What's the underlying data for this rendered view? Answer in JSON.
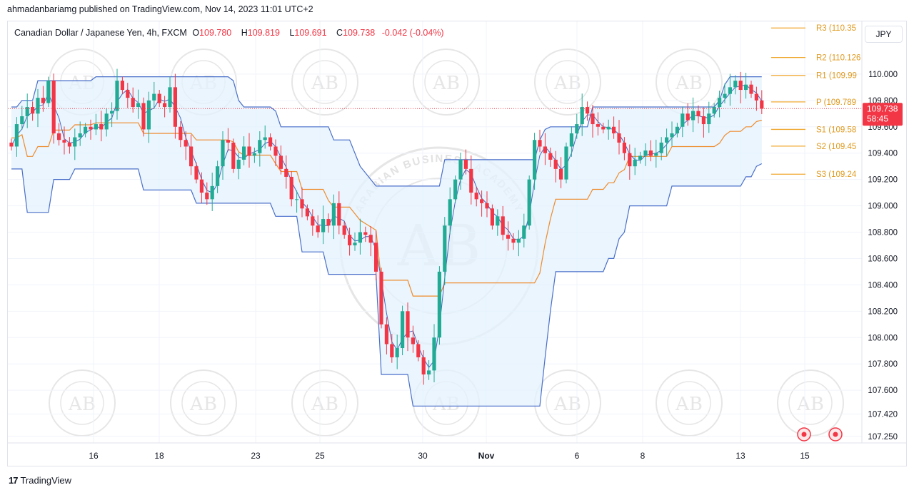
{
  "header": {
    "published": "ahmadanbariamg published on TradingView.com, Nov 14, 2023 11:01 UTC+2"
  },
  "legend": {
    "symbol": "Canadian Dollar / Japanese Yen, 4h, FXCM",
    "open_key": "O",
    "open": "109.780",
    "high_key": "H",
    "high": "109.819",
    "low_key": "L",
    "low": "109.691",
    "close_key": "C",
    "close": "109.738",
    "change": "-0.042 (-0.04%)"
  },
  "currency_button": "JPY",
  "footer": {
    "brand": "TradingView",
    "logo_mark": "17"
  },
  "watermark": {
    "top_text": "ARABIAN BUSINESS ACADEMY",
    "initials": "AB"
  },
  "colors": {
    "up": "#22ab94",
    "down": "#f23645",
    "channel": "#4a6fc9",
    "channel_fill": "#e3f2fd",
    "mid_line": "#ef8b2c",
    "pivot": "#f0a830",
    "price_label": "#f23645"
  },
  "chart_data": {
    "type": "candlestick",
    "timeframe": "4h",
    "ylim": [
      107.2,
      110.4
    ],
    "x_ticks": [
      "16",
      "18",
      "23",
      "25",
      "30",
      "Nov",
      "6",
      "8",
      "13",
      "15"
    ],
    "y_ticks": [
      "110.000",
      "109.800",
      "109.600",
      "109.400",
      "109.200",
      "109.000",
      "108.800",
      "108.600",
      "108.400",
      "108.200",
      "108.000",
      "107.800",
      "107.600",
      "107.420",
      "107.250"
    ],
    "last_price": "109.738",
    "countdown": "58:45",
    "pivots": [
      {
        "label": "R3",
        "text": "R3 (110.35",
        "value": 110.35
      },
      {
        "label": "R2",
        "text": "R2 (110.126",
        "value": 110.126
      },
      {
        "label": "R1",
        "text": "R1 (109.99",
        "value": 109.99
      },
      {
        "label": "P",
        "text": "P (109.789",
        "value": 109.789
      },
      {
        "label": "S1",
        "text": "S1 (109.58",
        "value": 109.58
      },
      {
        "label": "S2",
        "text": "S2 (109.45",
        "value": 109.453
      },
      {
        "label": "S3",
        "text": "S3 (109.24",
        "value": 109.24
      }
    ],
    "closes": [
      109.45,
      109.62,
      109.68,
      109.75,
      109.7,
      109.82,
      109.78,
      109.95,
      109.55,
      109.5,
      109.48,
      109.45,
      109.52,
      109.55,
      109.6,
      109.58,
      109.62,
      109.58,
      109.7,
      109.72,
      109.95,
      109.88,
      109.82,
      109.75,
      109.78,
      109.58,
      109.8,
      109.85,
      109.78,
      109.75,
      109.9,
      109.6,
      109.5,
      109.45,
      109.3,
      109.2,
      109.1,
      109.05,
      109.15,
      109.3,
      109.5,
      109.48,
      109.28,
      109.35,
      109.45,
      109.38,
      109.4,
      109.5,
      109.52,
      109.45,
      109.38,
      109.28,
      109.22,
      109.05,
      109.05,
      108.98,
      108.92,
      108.85,
      108.8,
      108.9,
      108.85,
      109.02,
      108.85,
      108.78,
      108.7,
      108.72,
      108.8,
      108.78,
      108.72,
      108.5,
      108.1,
      107.95,
      107.85,
      107.92,
      108.2,
      108.0,
      107.95,
      107.85,
      107.72,
      107.75,
      108.0,
      108.5,
      108.85,
      109.05,
      109.2,
      109.35,
      109.28,
      109.1,
      109.05,
      109.02,
      108.98,
      108.85,
      108.92,
      108.78,
      108.75,
      108.72,
      108.75,
      108.85,
      109.2,
      109.5,
      109.45,
      109.4,
      109.35,
      109.28,
      109.2,
      109.45,
      109.55,
      109.62,
      109.75,
      109.7,
      109.62,
      109.6,
      109.58,
      109.6,
      109.55,
      109.48,
      109.4,
      109.3,
      109.35,
      109.38,
      109.42,
      109.38,
      109.4,
      109.48,
      109.52,
      109.55,
      109.6,
      109.7,
      109.65,
      109.72,
      109.68,
      109.62,
      109.7,
      109.75,
      109.82,
      109.85,
      109.9,
      109.95,
      109.88,
      109.92,
      109.85,
      109.8,
      109.738
    ],
    "lower_band": [
      109.28,
      109.28,
      109.28,
      108.95,
      108.95,
      108.95,
      108.95,
      108.95,
      109.2,
      109.2,
      109.2,
      109.2,
      109.28,
      109.28,
      109.28,
      109.28,
      109.28,
      109.28,
      109.28,
      109.28,
      109.28,
      109.28,
      109.28,
      109.28,
      109.28,
      109.12,
      109.12,
      109.12,
      109.12,
      109.12,
      109.12,
      109.12,
      109.12,
      109.12,
      109.12,
      109.02,
      109.02,
      109.02,
      109.02,
      109.02,
      109.02,
      109.02,
      109.02,
      109.02,
      109.02,
      109.02,
      109.02,
      109.02,
      109.02,
      109.02,
      108.92,
      108.92,
      108.92,
      108.92,
      108.92,
      108.65,
      108.65,
      108.65,
      108.65,
      108.65,
      108.48,
      108.48,
      108.48,
      108.48,
      108.48,
      108.48,
      108.48,
      108.48,
      108.48,
      108.48,
      107.72,
      107.72,
      107.72,
      107.72,
      107.72,
      107.72,
      107.48,
      107.48,
      107.48,
      107.48,
      107.48,
      107.48,
      107.48,
      107.48,
      107.48,
      107.48,
      107.48,
      107.48,
      107.48,
      107.48,
      107.48,
      107.48,
      107.48,
      107.48,
      107.48,
      107.48,
      107.48,
      107.48,
      107.48,
      107.48,
      107.48,
      107.85,
      108.2,
      108.5,
      108.5,
      108.5,
      108.5,
      108.5,
      108.5,
      108.5,
      108.5,
      108.5,
      108.5,
      108.6,
      108.6,
      108.75,
      108.8,
      109.0,
      109.0,
      109.0,
      109.0,
      109.0,
      109.0,
      109.0,
      109.0,
      109.15,
      109.15,
      109.15,
      109.15,
      109.15,
      109.15,
      109.15,
      109.15,
      109.15,
      109.15,
      109.15,
      109.15,
      109.15,
      109.15,
      109.22,
      109.22,
      109.3,
      109.32,
      109.35
    ],
    "upper_band": [
      109.75,
      109.75,
      109.8,
      109.8,
      109.8,
      109.95,
      109.95,
      109.95,
      109.95,
      109.95,
      109.95,
      109.95,
      109.95,
      109.95,
      109.95,
      109.95,
      109.98,
      109.98,
      109.98,
      109.98,
      109.98,
      109.98,
      109.98,
      109.98,
      109.98,
      109.98,
      109.98,
      109.98,
      109.98,
      109.98,
      109.98,
      109.98,
      109.98,
      109.98,
      109.98,
      109.98,
      109.98,
      109.98,
      109.98,
      109.98,
      109.98,
      109.98,
      109.95,
      109.8,
      109.75,
      109.75,
      109.75,
      109.75,
      109.75,
      109.75,
      109.72,
      109.6,
      109.6,
      109.6,
      109.6,
      109.6,
      109.6,
      109.6,
      109.6,
      109.6,
      109.6,
      109.5,
      109.5,
      109.5,
      109.5,
      109.4,
      109.3,
      109.25,
      109.2,
      109.15,
      109.15,
      109.15,
      109.15,
      109.15,
      109.15,
      109.15,
      109.15,
      109.15,
      109.15,
      109.15,
      109.15,
      109.15,
      109.35,
      109.35,
      109.35,
      109.35,
      109.35,
      109.35,
      109.35,
      109.35,
      109.35,
      109.35,
      109.35,
      109.35,
      109.35,
      109.35,
      109.35,
      109.35,
      109.35,
      109.35,
      109.5,
      109.58,
      109.6,
      109.6,
      109.6,
      109.6,
      109.6,
      109.6,
      109.6,
      109.6,
      109.75,
      109.75,
      109.75,
      109.75,
      109.75,
      109.75,
      109.75,
      109.75,
      109.75,
      109.75,
      109.75,
      109.75,
      109.75,
      109.75,
      109.75,
      109.75,
      109.75,
      109.75,
      109.75,
      109.75,
      109.75,
      109.75,
      109.75,
      109.75,
      109.8,
      109.92,
      109.98,
      109.98,
      109.98,
      109.98,
      109.98,
      109.98,
      109.98
    ]
  }
}
